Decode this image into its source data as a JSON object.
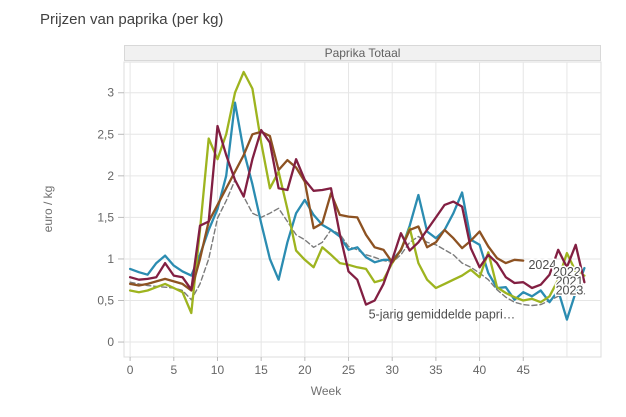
{
  "page": {
    "title": "Prijzen van paprika (per kg)"
  },
  "panel": {
    "title": "Paprika Totaal"
  },
  "chart_data": {
    "type": "line",
    "title": "Prijzen van paprika (per kg)",
    "panel_title": "Paprika Totaal",
    "xlabel": "Week",
    "ylabel": "euro / kg",
    "xlim": [
      -0.7,
      53.9
    ],
    "ylim": [
      -0.18,
      3.37
    ],
    "grid": true,
    "x_tick_values": [
      0,
      5,
      10,
      15,
      20,
      25,
      30,
      35,
      40,
      45
    ],
    "x_tick_labels": [
      "0",
      "5",
      "10",
      "15",
      "20",
      "25",
      "30",
      "35",
      "40",
      "45"
    ],
    "x_gridline_values": [
      0,
      5,
      10,
      15,
      20,
      25,
      30,
      35,
      40,
      45,
      50
    ],
    "y_tick_values": [
      0,
      0.5,
      1,
      1.5,
      2,
      2.5,
      3
    ],
    "y_tick_labels": [
      "0",
      "0,5",
      "1",
      "1,5",
      "2",
      "2,5",
      "3"
    ],
    "colors": {
      "y2022": "#2b8cb1",
      "y2021": "#9eb41f",
      "y2023": "#821f42",
      "y2024": "#8d5222",
      "average": "#7b7b7b",
      "grid": "#e6e6e6",
      "plot_border": "#dcdcdc",
      "tick_text": "#666666"
    },
    "series": [
      {
        "name": "5-jarig gemiddelde paprika",
        "color": "#7b7b7b",
        "dashed": true,
        "width": 1.4,
        "start_week": 0,
        "values": [
          0.72,
          0.7,
          0.68,
          0.67,
          0.66,
          0.65,
          0.62,
          0.51,
          0.7,
          1.0,
          1.49,
          1.7,
          1.95,
          1.75,
          1.55,
          1.5,
          1.55,
          1.61,
          1.45,
          1.29,
          1.23,
          1.14,
          1.2,
          1.35,
          1.3,
          1.15,
          1.11,
          1.05,
          1.02,
          0.98,
          0.96,
          1.05,
          1.2,
          1.27,
          1.2,
          1.17,
          1.11,
          1.05,
          0.95,
          0.9,
          0.83,
          0.75,
          0.63,
          0.54,
          0.48,
          0.45,
          0.44,
          0.45,
          0.5,
          0.55,
          0.6,
          0.62,
          0.58
        ]
      },
      {
        "name": "2022",
        "color": "#2b8cb1",
        "dashed": false,
        "width": 2.3,
        "start_week": 0,
        "values": [
          0.88,
          0.84,
          0.81,
          0.95,
          1.04,
          0.92,
          0.85,
          0.8,
          1.05,
          1.35,
          1.6,
          2.0,
          2.88,
          2.3,
          1.9,
          1.43,
          1.0,
          0.75,
          1.2,
          1.55,
          1.71,
          1.53,
          1.41,
          1.35,
          1.27,
          1.11,
          1.14,
          1.02,
          0.96,
          0.99,
          0.99,
          1.1,
          1.4,
          1.77,
          1.33,
          1.25,
          1.35,
          1.55,
          1.8,
          1.23,
          1.17,
          0.83,
          0.65,
          0.66,
          0.51,
          0.6,
          0.55,
          0.62,
          0.48,
          0.62,
          0.27,
          0.6,
          0.89
        ]
      },
      {
        "name": "2021",
        "color": "#9eb41f",
        "dashed": false,
        "width": 2.3,
        "start_week": 0,
        "values": [
          0.62,
          0.6,
          0.62,
          0.66,
          0.7,
          0.65,
          0.6,
          0.35,
          1.35,
          2.45,
          2.2,
          2.5,
          3.0,
          3.25,
          3.05,
          2.4,
          1.85,
          2.05,
          1.6,
          1.1,
          0.99,
          0.9,
          1.14,
          1.05,
          0.95,
          0.93,
          0.9,
          0.88,
          0.72,
          0.75,
          0.95,
          1.11,
          1.37,
          0.95,
          0.75,
          0.65,
          0.7,
          0.75,
          0.8,
          0.87,
          0.78,
          1.08,
          0.66,
          0.59,
          0.54,
          0.5,
          0.52,
          0.48,
          0.55,
          0.75,
          1.07,
          0.85,
          0.8
        ]
      },
      {
        "name": "2024",
        "color": "#8d5222",
        "dashed": false,
        "width": 2.3,
        "start_week": 0,
        "values": [
          0.7,
          0.68,
          0.7,
          0.73,
          0.76,
          0.73,
          0.7,
          0.62,
          1.0,
          1.45,
          1.65,
          1.85,
          2.05,
          2.25,
          2.5,
          2.53,
          2.48,
          2.07,
          2.19,
          2.1,
          1.93,
          1.37,
          1.43,
          1.79,
          1.53,
          1.51,
          1.5,
          1.29,
          1.14,
          1.11,
          0.96,
          1.11,
          1.35,
          1.39,
          1.14,
          1.2,
          1.35,
          1.25,
          1.13,
          1.22,
          1.33,
          1.15,
          1.01,
          0.95,
          0.99,
          0.98
        ]
      },
      {
        "name": "2023",
        "color": "#821f42",
        "dashed": false,
        "width": 2.3,
        "start_week": 0,
        "values": [
          0.78,
          0.75,
          0.76,
          0.78,
          0.95,
          0.8,
          0.78,
          0.63,
          1.4,
          1.45,
          2.6,
          2.25,
          1.95,
          1.75,
          2.2,
          2.55,
          2.4,
          1.85,
          1.83,
          2.2,
          1.95,
          1.82,
          1.83,
          1.85,
          1.3,
          0.85,
          0.75,
          0.45,
          0.5,
          0.7,
          0.99,
          1.31,
          1.1,
          1.2,
          1.35,
          1.5,
          1.65,
          1.69,
          1.63,
          1.13,
          0.9,
          1.05,
          0.95,
          0.78,
          0.71,
          0.72,
          0.65,
          0.69,
          0.81,
          1.11,
          0.9,
          1.17,
          0.72
        ]
      }
    ],
    "annotations": [
      {
        "text": "2024",
        "week": 45.6,
        "value": 0.93,
        "anchor": "start"
      },
      {
        "text": "2022",
        "week": 48.4,
        "value": 0.84,
        "anchor": "start"
      },
      {
        "text": "2021",
        "week": 48.7,
        "value": 0.73,
        "anchor": "start"
      },
      {
        "text": "2023",
        "week": 48.7,
        "value": 0.62,
        "anchor": "start"
      },
      {
        "text": "5-jarig gemiddelde papri…",
        "week": 27.3,
        "value": 0.33,
        "anchor": "start"
      }
    ]
  }
}
